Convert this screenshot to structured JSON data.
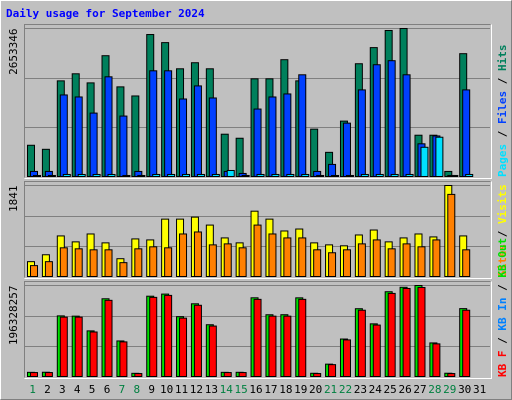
{
  "chart_data": [
    {
      "type": "bar",
      "title": "Daily usage for September 2024",
      "ylim": [
        0,
        2653346
      ],
      "yticks": [
        2653346
      ],
      "grid_divisions": 3,
      "legend_separator": " / ",
      "series": [
        {
          "name": "Pages",
          "color": "#00e0ff",
          "values": [
            36000,
            36000,
            54000,
            54000,
            54000,
            54000,
            36000,
            36000,
            54000,
            54000,
            54000,
            54000,
            54000,
            125000,
            36000,
            54000,
            54000,
            54000,
            54000,
            36000,
            36000,
            36000,
            54000,
            54000,
            54000,
            54000,
            538000,
            717000,
            36000,
            54000,
            0
          ]
        },
        {
          "name": "Files",
          "color": "#0040ff",
          "values": [
            108000,
            108000,
            1470000,
            1434000,
            1147000,
            1793000,
            1094000,
            108000,
            1900000,
            1900000,
            1398000,
            1631000,
            1416000,
            108000,
            72000,
            1219000,
            1434000,
            1488000,
            1829000,
            108000,
            233000,
            968000,
            1560000,
            2008000,
            2080000,
            1829000,
            600000,
            740000,
            36000,
            1560000,
            0
          ]
        },
        {
          "name": "Hits",
          "color": "#00805c",
          "values": [
            574000,
            502000,
            1721000,
            1847000,
            1685000,
            2169000,
            1614000,
            1452000,
            2546000,
            2402000,
            1936000,
            2044000,
            1936000,
            771000,
            699000,
            1757000,
            1757000,
            2098000,
            1721000,
            861000,
            448000,
            1004000,
            2026000,
            2313000,
            2618000,
            2653346,
            753000,
            753000,
            108000,
            2205000,
            0
          ]
        }
      ]
    },
    {
      "type": "bar",
      "ylim": [
        0,
        1841
      ],
      "yticks": [
        1841
      ],
      "grid_divisions": 3,
      "legend_separator": " / ",
      "series": [
        {
          "name": "Sites",
          "color": "#ff8000",
          "values": [
            238,
            317,
            594,
            574,
            554,
            554,
            297,
            574,
            614,
            594,
            871,
            911,
            653,
            673,
            594,
            1049,
            871,
            792,
            792,
            554,
            495,
            554,
            673,
            752,
            574,
            673,
            614,
            752,
            1663,
            554,
            0
          ]
        },
        {
          "name": "Visits",
          "color": "#ffff00",
          "values": [
            317,
            455,
            832,
            713,
            871,
            693,
            376,
            772,
            752,
            1168,
            1168,
            1208,
            1049,
            792,
            693,
            1327,
            1168,
            931,
            970,
            693,
            653,
            634,
            851,
            950,
            713,
            792,
            871,
            812,
            1841,
            832,
            0
          ]
        }
      ]
    },
    {
      "type": "bar",
      "ylim": [
        0,
        196328257
      ],
      "yticks": [
        196328257
      ],
      "grid_divisions": 3,
      "legend_separator": " / ",
      "categories": [
        "1",
        "2",
        "3",
        "4",
        "5",
        "6",
        "7",
        "8",
        "9",
        "10",
        "11",
        "12",
        "13",
        "14",
        "15",
        "16",
        "17",
        "18",
        "19",
        "20",
        "21",
        "22",
        "23",
        "24",
        "25",
        "26",
        "27",
        "28",
        "29",
        "30",
        "31"
      ],
      "category_colors": [
        "#008040",
        "#000000",
        "#000000",
        "#000000",
        "#000000",
        "#000000",
        "#008040",
        "#008040",
        "#000000",
        "#000000",
        "#000000",
        "#000000",
        "#000000",
        "#008040",
        "#008040",
        "#000000",
        "#000000",
        "#000000",
        "#000000",
        "#000000",
        "#008040",
        "#008040",
        "#000000",
        "#000000",
        "#000000",
        "#000000",
        "#000000",
        "#008040",
        "#008040",
        "#000000",
        "#000000"
      ],
      "series": [
        {
          "name": "KB F",
          "color": "#ff0000",
          "values": [
            10555000,
            10555000,
            128774000,
            128774000,
            97109000,
            164662000,
            75998000,
            8444000,
            170996000,
            175218000,
            126663000,
            154107000,
            109775000,
            10555000,
            10555000,
            166773000,
            130885000,
            130885000,
            166773000,
            8444000,
            27444000,
            80220000,
            143552000,
            111886000,
            179440000,
            189995000,
            192000000,
            71776000,
            8444000,
            143552000,
            0
          ]
        },
        {
          "name": "KB In",
          "color": "#0080ff",
          "values": [
            0,
            0,
            0,
            0,
            0,
            0,
            0,
            0,
            0,
            0,
            0,
            0,
            0,
            0,
            0,
            0,
            0,
            0,
            0,
            0,
            0,
            0,
            0,
            0,
            0,
            0,
            0,
            0,
            0,
            0,
            0
          ]
        },
        {
          "name": "KB Out",
          "color": "#00e000",
          "values": [
            11000000,
            11200000,
            131500000,
            130900000,
            99500000,
            168000000,
            78000000,
            8900000,
            173500000,
            178000000,
            129800000,
            157300000,
            112600000,
            11000000,
            11100000,
            170100000,
            133900000,
            134000000,
            170000000,
            9000000,
            28500000,
            82100000,
            146800000,
            114500000,
            183000000,
            192500000,
            196328257,
            73800000,
            9100000,
            147000000,
            0
          ]
        }
      ]
    }
  ]
}
